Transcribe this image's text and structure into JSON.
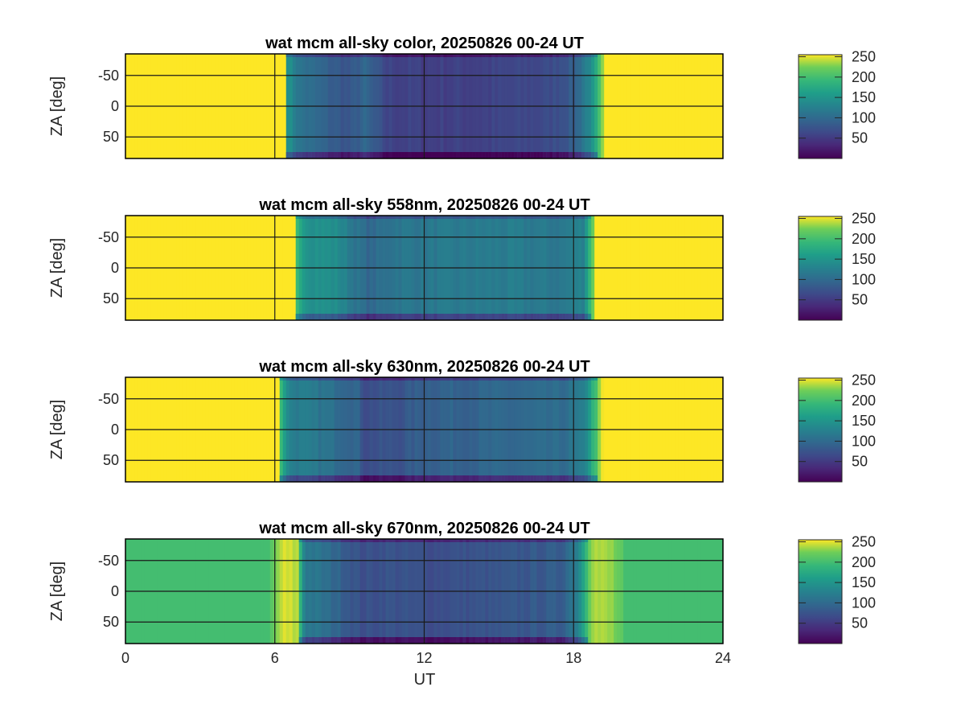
{
  "chart_data": {
    "type": "heatmap",
    "colormap": "viridis",
    "shared_x": {
      "label": "UT",
      "range": [
        0,
        24
      ],
      "ticks": [
        0,
        6,
        12,
        18,
        24
      ],
      "tick_labels": [
        "0",
        "6",
        "12",
        "18",
        "24"
      ]
    },
    "panels": [
      {
        "id": "color",
        "title": "wat mcm all-sky color, 20250826 00-24 UT",
        "ylabel": "ZA [deg]",
        "ylim": [
          -85,
          85
        ],
        "y_reversed": true,
        "yticks": [
          -50,
          0,
          50
        ],
        "ytick_labels": [
          "-50",
          "0",
          "50"
        ],
        "grid": true,
        "clim": [
          0,
          255
        ],
        "colorbar_ticks": [
          50,
          100,
          150,
          200,
          250
        ],
        "colorbar_labels": [
          "50",
          "100",
          "150",
          "200",
          "250"
        ],
        "day_value": 255,
        "dusk_edge_ut": 6.6,
        "dawn_edge_ut": 19.2,
        "night_profile": [
          {
            "ut": 6.5,
            "value": 150
          },
          {
            "ut": 7.0,
            "value": 110
          },
          {
            "ut": 8.0,
            "value": 90
          },
          {
            "ut": 9.0,
            "value": 75
          },
          {
            "ut": 9.6,
            "value": 95
          },
          {
            "ut": 10.5,
            "value": 60
          },
          {
            "ut": 12.0,
            "value": 55
          },
          {
            "ut": 15.0,
            "value": 58
          },
          {
            "ut": 17.0,
            "value": 65
          },
          {
            "ut": 18.0,
            "value": 85
          },
          {
            "ut": 18.8,
            "value": 150
          },
          {
            "ut": 19.3,
            "value": 255
          }
        ]
      },
      {
        "id": "558nm",
        "title": "wat mcm all-sky 558nm, 20250826 00-24 UT",
        "ylabel": "ZA [deg]",
        "ylim": [
          -85,
          85
        ],
        "y_reversed": true,
        "yticks": [
          -50,
          0,
          50
        ],
        "ytick_labels": [
          "-50",
          "0",
          "50"
        ],
        "grid": true,
        "clim": [
          0,
          255
        ],
        "colorbar_ticks": [
          50,
          100,
          150,
          200,
          250
        ],
        "colorbar_labels": [
          "50",
          "100",
          "150",
          "200",
          "250"
        ],
        "day_value": 255,
        "dusk_edge_ut": 7.0,
        "dawn_edge_ut": 18.8,
        "night_profile": [
          {
            "ut": 6.8,
            "value": 200
          },
          {
            "ut": 7.3,
            "value": 150
          },
          {
            "ut": 8.5,
            "value": 140
          },
          {
            "ut": 9.3,
            "value": 110
          },
          {
            "ut": 9.8,
            "value": 95
          },
          {
            "ut": 10.8,
            "value": 115
          },
          {
            "ut": 12.0,
            "value": 115
          },
          {
            "ut": 15.0,
            "value": 120
          },
          {
            "ut": 17.5,
            "value": 115
          },
          {
            "ut": 18.4,
            "value": 130
          },
          {
            "ut": 18.9,
            "value": 255
          }
        ]
      },
      {
        "id": "630nm",
        "title": "wat mcm all-sky 630nm, 20250826 00-24 UT",
        "ylabel": "ZA [deg]",
        "ylim": [
          -85,
          85
        ],
        "y_reversed": true,
        "yticks": [
          -50,
          0,
          50
        ],
        "ytick_labels": [
          "-50",
          "0",
          "50"
        ],
        "grid": true,
        "clim": [
          0,
          255
        ],
        "colorbar_ticks": [
          50,
          100,
          150,
          200,
          250
        ],
        "colorbar_labels": [
          "50",
          "100",
          "150",
          "200",
          "250"
        ],
        "day_value": 255,
        "dusk_edge_ut": 6.3,
        "dawn_edge_ut": 19.1,
        "night_profile": [
          {
            "ut": 6.2,
            "value": 200
          },
          {
            "ut": 6.6,
            "value": 125
          },
          {
            "ut": 8.0,
            "value": 110
          },
          {
            "ut": 9.3,
            "value": 95
          },
          {
            "ut": 9.6,
            "value": 70
          },
          {
            "ut": 11.0,
            "value": 75
          },
          {
            "ut": 12.0,
            "value": 90
          },
          {
            "ut": 15.0,
            "value": 95
          },
          {
            "ut": 17.5,
            "value": 100
          },
          {
            "ut": 18.4,
            "value": 120
          },
          {
            "ut": 19.2,
            "value": 255
          }
        ]
      },
      {
        "id": "670nm",
        "title": "wat mcm all-sky 670nm, 20250826 00-24 UT",
        "ylabel": "ZA [deg]",
        "ylim": [
          -85,
          85
        ],
        "y_reversed": true,
        "yticks": [
          -50,
          0,
          50
        ],
        "ytick_labels": [
          "-50",
          "0",
          "50"
        ],
        "grid": true,
        "clim": [
          0,
          255
        ],
        "colorbar_ticks": [
          50,
          100,
          150,
          200,
          250
        ],
        "colorbar_labels": [
          "50",
          "100",
          "150",
          "200",
          "250"
        ],
        "day_value": 200,
        "dusk_edge_ut": 6.9,
        "dawn_edge_ut": 18.3,
        "night_profile": [
          {
            "ut": 5.8,
            "value": 205
          },
          {
            "ut": 6.3,
            "value": 245
          },
          {
            "ut": 6.9,
            "value": 240
          },
          {
            "ut": 7.2,
            "value": 120
          },
          {
            "ut": 8.5,
            "value": 95
          },
          {
            "ut": 9.5,
            "value": 70
          },
          {
            "ut": 10.5,
            "value": 75
          },
          {
            "ut": 12.0,
            "value": 70
          },
          {
            "ut": 15.0,
            "value": 75
          },
          {
            "ut": 17.5,
            "value": 85
          },
          {
            "ut": 18.2,
            "value": 130
          },
          {
            "ut": 18.7,
            "value": 240
          },
          {
            "ut": 19.6,
            "value": 230
          },
          {
            "ut": 20.0,
            "value": 205
          }
        ]
      }
    ]
  }
}
